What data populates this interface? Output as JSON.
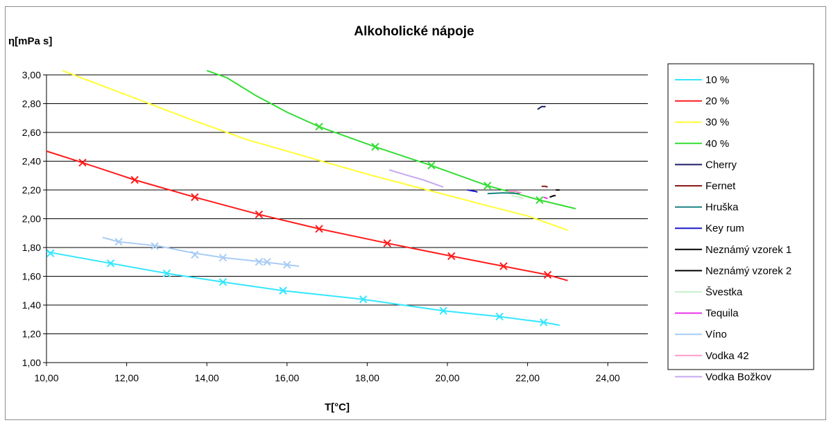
{
  "chart_data": {
    "type": "line",
    "title": "Alkoholické nápoje",
    "xlabel": "T[°C]",
    "ylabel": "η[mPa s]",
    "xlim": [
      10,
      25
    ],
    "ylim": [
      1.0,
      3.0
    ],
    "xticks": [
      "10,00",
      "12,00",
      "14,00",
      "16,00",
      "18,00",
      "20,00",
      "22,00",
      "24,00"
    ],
    "yticks": [
      "1,00",
      "1,20",
      "1,40",
      "1,60",
      "1,80",
      "2,00",
      "2,20",
      "2,40",
      "2,60",
      "2,80",
      "3,00"
    ],
    "grid": "horizontal",
    "legend_position": "right",
    "series": [
      {
        "name": "10 %",
        "color": "#33e6ff",
        "marker": "x",
        "points": [
          [
            10,
            1.77
          ],
          [
            11.6,
            1.69
          ],
          [
            13,
            1.62
          ],
          [
            14.4,
            1.56
          ],
          [
            15.9,
            1.5
          ],
          [
            17.9,
            1.44
          ],
          [
            19.9,
            1.36
          ],
          [
            21.3,
            1.32
          ],
          [
            22.4,
            1.28
          ],
          [
            22.8,
            1.26
          ]
        ],
        "marker_points": [
          [
            10.1,
            1.76
          ],
          [
            11.6,
            1.69
          ],
          [
            13,
            1.62
          ],
          [
            14.4,
            1.56
          ],
          [
            15.9,
            1.5
          ],
          [
            17.9,
            1.44
          ],
          [
            19.9,
            1.36
          ],
          [
            21.3,
            1.32
          ],
          [
            22.4,
            1.28
          ]
        ]
      },
      {
        "name": "20 %",
        "color": "#ff1a1a",
        "marker": "x",
        "points": [
          [
            10,
            2.47
          ],
          [
            10.9,
            2.39
          ],
          [
            12.2,
            2.27
          ],
          [
            13.7,
            2.15
          ],
          [
            15.3,
            2.03
          ],
          [
            16.8,
            1.93
          ],
          [
            18.5,
            1.83
          ],
          [
            20.1,
            1.74
          ],
          [
            21.4,
            1.67
          ],
          [
            22.5,
            1.61
          ],
          [
            23,
            1.57
          ]
        ],
        "marker_points": [
          [
            10.9,
            2.39
          ],
          [
            12.2,
            2.27
          ],
          [
            13.7,
            2.15
          ],
          [
            15.3,
            2.03
          ],
          [
            16.8,
            1.93
          ],
          [
            18.5,
            1.83
          ],
          [
            20.1,
            1.74
          ],
          [
            21.4,
            1.67
          ],
          [
            22.5,
            1.61
          ]
        ]
      },
      {
        "name": "30 %",
        "color": "#ffff33",
        "marker": "none",
        "points": [
          [
            10.4,
            3.03
          ],
          [
            12,
            2.86
          ],
          [
            13.5,
            2.7
          ],
          [
            15,
            2.55
          ],
          [
            16.5,
            2.43
          ],
          [
            18,
            2.31
          ],
          [
            19.5,
            2.2
          ],
          [
            21,
            2.09
          ],
          [
            22,
            2.02
          ],
          [
            23,
            1.92
          ]
        ]
      },
      {
        "name": "40 %",
        "color": "#33dd33",
        "marker": "x",
        "points": [
          [
            14,
            3.03
          ],
          [
            14.5,
            2.98
          ],
          [
            15.2,
            2.86
          ],
          [
            16,
            2.74
          ],
          [
            16.8,
            2.64
          ],
          [
            18.2,
            2.5
          ],
          [
            19.6,
            2.37
          ],
          [
            21,
            2.23
          ],
          [
            22.3,
            2.13
          ],
          [
            23.2,
            2.07
          ]
        ],
        "marker_points": [
          [
            16.8,
            2.64
          ],
          [
            18.2,
            2.5
          ],
          [
            19.6,
            2.37
          ],
          [
            21,
            2.23
          ],
          [
            22.3,
            2.13
          ]
        ]
      },
      {
        "name": "Cherry",
        "color": "#1a1a66",
        "marker": "none",
        "points": [
          [
            22.25,
            2.76
          ],
          [
            22.35,
            2.78
          ],
          [
            22.45,
            2.78
          ]
        ]
      },
      {
        "name": "Fernet",
        "color": "#8b1a1a",
        "marker": "none",
        "points": [
          [
            22.35,
            2.225
          ],
          [
            22.45,
            2.225
          ],
          [
            22.5,
            2.22
          ]
        ]
      },
      {
        "name": "Hruška",
        "color": "#1a8080",
        "marker": "none",
        "points": [
          [
            21,
            2.175
          ],
          [
            21.4,
            2.18
          ],
          [
            21.8,
            2.175
          ]
        ]
      },
      {
        "name": "Key rum",
        "color": "#1a1acc",
        "marker": "none",
        "points": [
          [
            20.5,
            2.2
          ],
          [
            20.7,
            2.19
          ],
          [
            20.75,
            2.185
          ]
        ]
      },
      {
        "name": "Neznámý vzorek 1",
        "color": "#000000",
        "marker": "none",
        "points": [
          [
            22.55,
            2.15
          ],
          [
            22.65,
            2.16
          ],
          [
            22.7,
            2.16
          ]
        ]
      },
      {
        "name": "Neznámý vzorek 2",
        "color": "#000000",
        "marker": "none",
        "points": [
          [
            22.7,
            2.2
          ],
          [
            22.8,
            2.2
          ]
        ]
      },
      {
        "name": "Švestka",
        "color": "#c8f0c8",
        "marker": "none",
        "points": [
          [
            21.6,
            2.16
          ],
          [
            21.8,
            2.15
          ],
          [
            21.9,
            2.14
          ]
        ]
      },
      {
        "name": "Tequila",
        "color": "#e633e6",
        "marker": "none",
        "points": [
          [
            22.4,
            2.15
          ],
          [
            22.5,
            2.14
          ]
        ]
      },
      {
        "name": "Víno",
        "color": "#a8ccf5",
        "marker": "x",
        "points": [
          [
            11.4,
            1.87
          ],
          [
            11.8,
            1.84
          ],
          [
            12.8,
            1.81
          ],
          [
            13.7,
            1.76
          ],
          [
            14.4,
            1.73
          ],
          [
            15.4,
            1.7
          ],
          [
            16,
            1.68
          ],
          [
            16.3,
            1.67
          ]
        ],
        "marker_points": [
          [
            11.8,
            1.84
          ],
          [
            12.7,
            1.81
          ],
          [
            13.7,
            1.75
          ],
          [
            14.4,
            1.73
          ],
          [
            15.3,
            1.7
          ],
          [
            15.5,
            1.7
          ],
          [
            16,
            1.68
          ]
        ]
      },
      {
        "name": "Vodka 42",
        "color": "#ff99cc",
        "marker": "none",
        "points": [
          [
            21.5,
            2.19
          ],
          [
            21.7,
            2.19
          ],
          [
            21.85,
            2.18
          ]
        ]
      },
      {
        "name": "Vodka Božkov",
        "color": "#c8a8f0",
        "marker": "none",
        "points": [
          [
            18.55,
            2.34
          ],
          [
            18.9,
            2.31
          ],
          [
            19.4,
            2.27
          ],
          [
            19.9,
            2.22
          ]
        ]
      }
    ]
  }
}
